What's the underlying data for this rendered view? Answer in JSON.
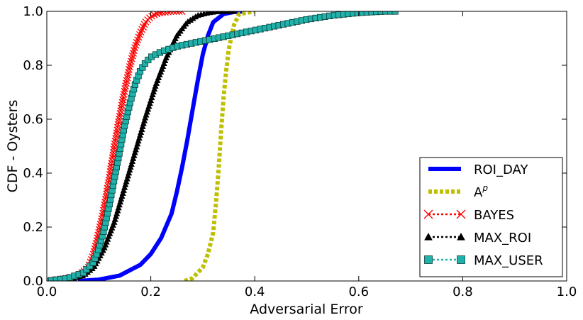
{
  "chart_data": {
    "type": "line",
    "title": "",
    "xlabel": "Adversarial Error",
    "ylabel": "CDF - Oysters",
    "xlim": [
      0.0,
      1.0
    ],
    "ylim": [
      0.0,
      1.0
    ],
    "xticks": [
      "0.0",
      "0.2",
      "0.4",
      "0.6",
      "0.8",
      "1.0"
    ],
    "yticks": [
      "0.0",
      "0.2",
      "0.4",
      "0.6",
      "0.8",
      "1.0"
    ],
    "grid": false,
    "legend_position": "lower-right",
    "series": [
      {
        "name": "ROI_DAY",
        "color": "#0000ff",
        "style": "solid",
        "marker": "none",
        "x": [
          0.06,
          0.1,
          0.14,
          0.18,
          0.2,
          0.22,
          0.24,
          0.25,
          0.26,
          0.27,
          0.28,
          0.29,
          0.3,
          0.31,
          0.32,
          0.34,
          0.36,
          0.38
        ],
        "y": [
          0.0,
          0.005,
          0.02,
          0.06,
          0.1,
          0.16,
          0.25,
          0.33,
          0.42,
          0.52,
          0.63,
          0.74,
          0.84,
          0.91,
          0.96,
          0.99,
          0.998,
          1.0
        ]
      },
      {
        "name": "A^p",
        "name_base": "A",
        "name_sup": "p",
        "color": "#bfbf00",
        "style": "dotted",
        "marker": "none",
        "x": [
          0.265,
          0.28,
          0.3,
          0.31,
          0.32,
          0.325,
          0.33,
          0.335,
          0.34,
          0.345,
          0.35,
          0.36,
          0.37,
          0.4
        ],
        "y": [
          0.0,
          0.01,
          0.05,
          0.1,
          0.18,
          0.28,
          0.4,
          0.55,
          0.68,
          0.78,
          0.86,
          0.95,
          0.99,
          1.0
        ]
      },
      {
        "name": "BAYES",
        "color": "#ff0000",
        "style": "dotted",
        "marker": "x",
        "x": [
          0.0,
          0.04,
          0.06,
          0.08,
          0.09,
          0.1,
          0.11,
          0.12,
          0.13,
          0.14,
          0.15,
          0.16,
          0.17,
          0.18,
          0.19,
          0.2,
          0.21,
          0.22,
          0.24,
          0.26
        ],
        "y": [
          0.0,
          0.01,
          0.02,
          0.05,
          0.1,
          0.18,
          0.27,
          0.38,
          0.5,
          0.61,
          0.71,
          0.8,
          0.87,
          0.92,
          0.96,
          0.98,
          0.99,
          0.995,
          1.0,
          1.0
        ]
      },
      {
        "name": "MAX_ROI",
        "color": "#000000",
        "style": "dotted",
        "marker": "triangle",
        "x": [
          0.0,
          0.05,
          0.07,
          0.09,
          0.11,
          0.13,
          0.15,
          0.17,
          0.19,
          0.21,
          0.23,
          0.25,
          0.27,
          0.29,
          0.31,
          0.33,
          0.36
        ],
        "y": [
          0.0,
          0.01,
          0.02,
          0.05,
          0.12,
          0.22,
          0.35,
          0.48,
          0.61,
          0.73,
          0.83,
          0.91,
          0.96,
          0.985,
          0.995,
          1.0,
          1.0
        ]
      },
      {
        "name": "MAX_USER",
        "color": "#20b2aa",
        "style": "dotted",
        "marker": "square",
        "x": [
          0.0,
          0.04,
          0.07,
          0.09,
          0.1,
          0.11,
          0.12,
          0.13,
          0.14,
          0.15,
          0.16,
          0.17,
          0.18,
          0.19,
          0.2,
          0.22,
          0.25,
          0.3,
          0.35,
          0.4,
          0.45,
          0.5,
          0.55,
          0.6,
          0.65,
          0.67
        ],
        "y": [
          0.0,
          0.01,
          0.03,
          0.07,
          0.12,
          0.19,
          0.28,
          0.38,
          0.48,
          0.58,
          0.66,
          0.73,
          0.78,
          0.81,
          0.83,
          0.85,
          0.87,
          0.89,
          0.91,
          0.93,
          0.95,
          0.97,
          0.985,
          0.995,
          1.0,
          1.0
        ]
      }
    ]
  }
}
